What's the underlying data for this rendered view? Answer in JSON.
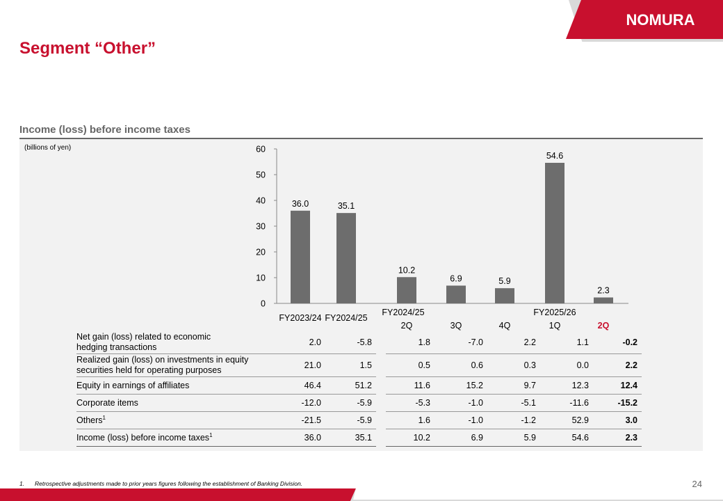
{
  "header": {
    "logo_text": "NOMURA",
    "title": "Segment “Other”",
    "brand_color": "#c8102e"
  },
  "section": {
    "title": "Income (loss) before income taxes",
    "units": "(billions of yen)"
  },
  "chart_data": {
    "type": "bar",
    "title": "Income (loss) before income taxes",
    "ylabel": "(billions of yen)",
    "ylim": [
      0,
      60
    ],
    "yticks": [
      0,
      10,
      20,
      30,
      40,
      50,
      60
    ],
    "grid": false,
    "bar_color": "#6d6d6d",
    "highlight_color": "#c8102e",
    "groups": [
      {
        "name": "annual",
        "categories": [
          "FY2023/24",
          "FY2024/25"
        ],
        "values": [
          36.0,
          35.1
        ],
        "value_labels": [
          "36.0",
          "35.1"
        ]
      },
      {
        "name": "quarterly",
        "period_labels": [
          "FY2024/25",
          "FY2025/26"
        ],
        "categories": [
          "2Q",
          "3Q",
          "4Q",
          "1Q",
          "2Q"
        ],
        "values": [
          10.2,
          6.9,
          5.9,
          54.6,
          2.3
        ],
        "value_labels": [
          "10.2",
          "6.9",
          "5.9",
          "54.6",
          "2.3"
        ],
        "highlight_index": 4
      }
    ]
  },
  "table": {
    "rows": [
      {
        "label": "Net gain (loss) related to economic hedging transactions",
        "label_lines": [
          "Net gain (loss) related to economic",
          "hedging transactions"
        ],
        "values": [
          "2.0",
          "-5.8",
          "1.8",
          "-7.0",
          "2.2",
          "1.1",
          "-0.2"
        ]
      },
      {
        "label": "Realized gain (loss) on investments in equity securities held for operating purposes",
        "label_lines": [
          "Realized gain (loss) on investments in equity",
          "securities held for operating purposes"
        ],
        "values": [
          "21.0",
          "1.5",
          "0.5",
          "0.6",
          "0.3",
          "0.0",
          "2.2"
        ]
      },
      {
        "label": "Equity in earnings of affiliates",
        "values": [
          "46.4",
          "51.2",
          "11.6",
          "15.2",
          "9.7",
          "12.3",
          "12.4"
        ]
      },
      {
        "label": "Corporate items",
        "values": [
          "-12.0",
          "-5.9",
          "-5.3",
          "-1.0",
          "-5.1",
          "-11.6",
          "-15.2"
        ]
      },
      {
        "label": "Others",
        "footnote_ref": "1",
        "values": [
          "-21.5",
          "-5.9",
          "1.6",
          "-1.0",
          "-1.2",
          "52.9",
          "3.0"
        ]
      },
      {
        "label": "Income (loss) before income taxes",
        "footnote_ref": "1",
        "values": [
          "36.0",
          "35.1",
          "10.2",
          "6.9",
          "5.9",
          "54.6",
          "2.3"
        ]
      }
    ]
  },
  "footnote": {
    "number": "1.",
    "text": "Retrospective adjustments made to prior years figures following the establishment of Banking Division."
  },
  "page_number": "24"
}
